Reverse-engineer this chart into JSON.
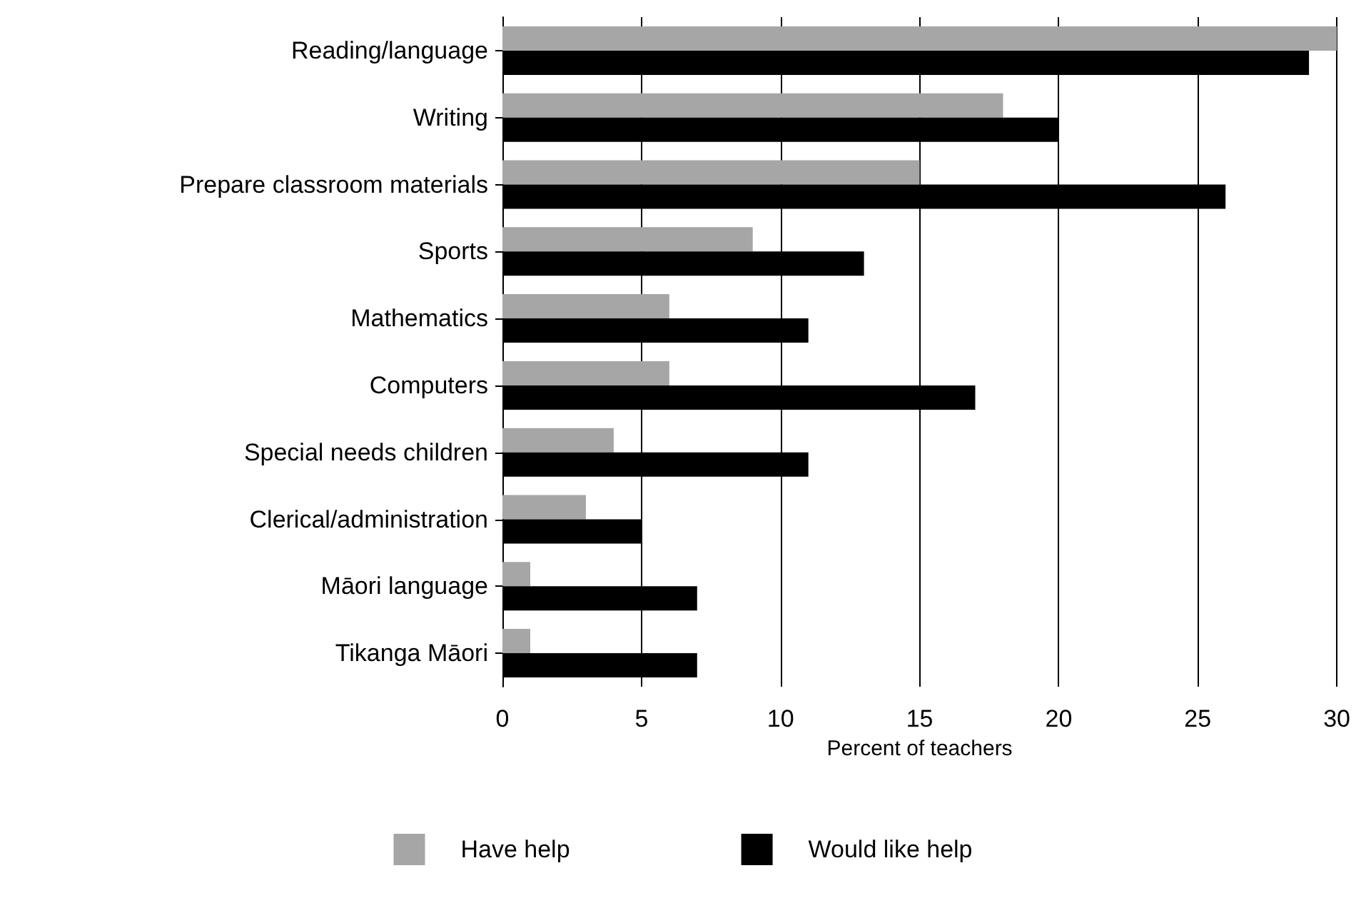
{
  "chart_data": {
    "type": "bar",
    "orientation": "horizontal",
    "xlabel": "Percent of teachers",
    "categories": [
      "Reading/language",
      "Writing",
      "Prepare classroom materials",
      "Sports",
      "Mathematics",
      "Computers",
      "Special needs children",
      "Clerical/administration",
      "Māori language",
      "Tikanga Māori"
    ],
    "series": [
      {
        "name": "Have help",
        "color": "#a6a6a6",
        "values": [
          30,
          18,
          15,
          9,
          6,
          6,
          4,
          3,
          1,
          1
        ]
      },
      {
        "name": "Would like help",
        "color": "#000000",
        "values": [
          29,
          20,
          26,
          13,
          11,
          17,
          11,
          5,
          7,
          7
        ]
      }
    ],
    "xlim": [
      0,
      30
    ],
    "xticks": [
      0,
      5,
      10,
      15,
      20,
      25,
      30
    ],
    "grid": "x",
    "legend": "bottom"
  }
}
